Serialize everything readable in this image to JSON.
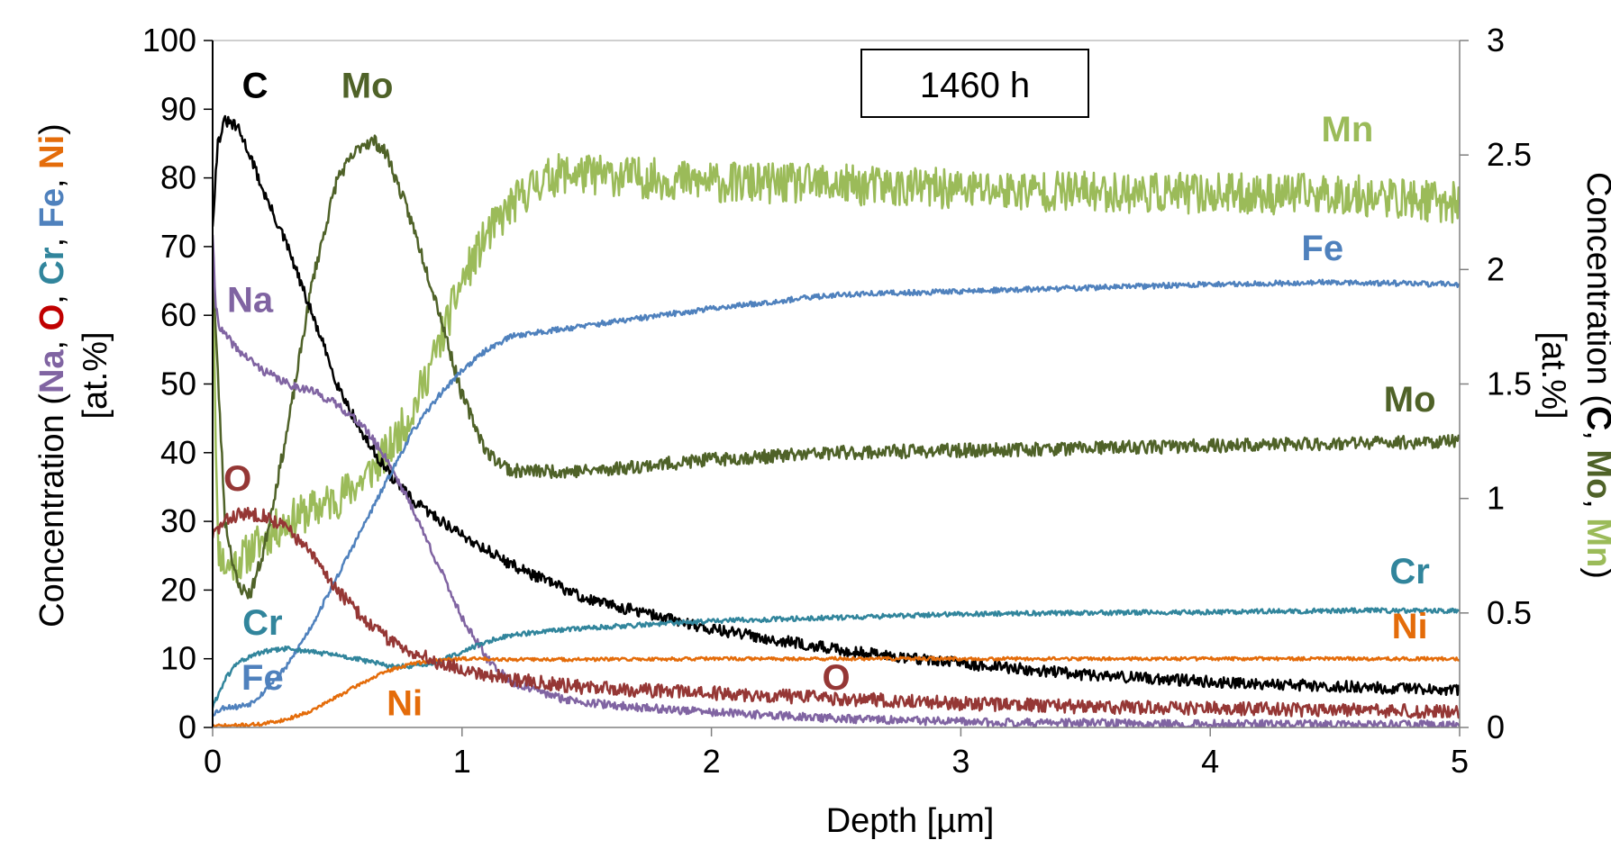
{
  "chart_data": {
    "type": "line",
    "annotation": "1460 h",
    "xlabel": "Depth [µm]",
    "xlim": [
      0,
      5
    ],
    "x_ticks": [
      "0",
      "1",
      "2",
      "3",
      "4",
      "5"
    ],
    "y_left": {
      "label_prefix": "Concentration",
      "label_elements": [
        {
          "text": "(",
          "color": "#000000"
        },
        {
          "text": "Na",
          "color": "#8064A2"
        },
        {
          "text": ", ",
          "color": "#000000"
        },
        {
          "text": "O",
          "color": "#C00000"
        },
        {
          "text": ", ",
          "color": "#000000"
        },
        {
          "text": "Cr",
          "color": "#31859C"
        },
        {
          "text": ", ",
          "color": "#000000"
        },
        {
          "text": "Fe",
          "color": "#4F81BD"
        },
        {
          "text": ", ",
          "color": "#000000"
        },
        {
          "text": "Ni",
          "color": "#E46C0A"
        },
        {
          "text": ")",
          "color": "#000000"
        }
      ],
      "unit": "[at.%]",
      "lim": [
        0,
        100
      ],
      "ticks": [
        "0",
        "10",
        "20",
        "30",
        "40",
        "50",
        "60",
        "70",
        "80",
        "90",
        "100"
      ]
    },
    "y_right": {
      "label_prefix": "Concentration",
      "label_elements": [
        {
          "text": "(",
          "color": "#000000"
        },
        {
          "text": "C",
          "color": "#000000"
        },
        {
          "text": ", ",
          "color": "#000000"
        },
        {
          "text": "Mo",
          "color": "#4F6228"
        },
        {
          "text": ", ",
          "color": "#000000"
        },
        {
          "text": "Mn",
          "color": "#9BBB59"
        },
        {
          "text": ")",
          "color": "#000000"
        }
      ],
      "unit": "[at.%]",
      "lim": [
        0,
        3
      ],
      "ticks": [
        "0",
        "0.5",
        "1",
        "1.5",
        "2",
        "2.5",
        "3"
      ]
    },
    "series": [
      {
        "name": "Mn",
        "axis": "right",
        "color": "#9BBB59",
        "noise": 0.09,
        "seed": 11,
        "x": [
          0,
          0.02,
          0.05,
          0.1,
          0.2,
          0.3,
          0.4,
          0.5,
          0.6,
          0.7,
          0.8,
          0.9,
          1.0,
          1.1,
          1.2,
          1.3,
          1.4,
          1.6,
          2.0,
          2.5,
          3.0,
          3.5,
          4.0,
          4.5,
          5.0
        ],
        "y": [
          2.1,
          0.8,
          0.7,
          0.72,
          0.82,
          0.9,
          0.95,
          1.0,
          1.08,
          1.2,
          1.38,
          1.65,
          1.95,
          2.15,
          2.28,
          2.38,
          2.42,
          2.41,
          2.38,
          2.37,
          2.35,
          2.34,
          2.33,
          2.33,
          2.29
        ]
      },
      {
        "name": "Mo",
        "axis": "right",
        "color": "#4F6228",
        "noise": 0.03,
        "seed": 23,
        "x": [
          0,
          0.05,
          0.1,
          0.15,
          0.2,
          0.3,
          0.4,
          0.5,
          0.6,
          0.65,
          0.7,
          0.8,
          0.9,
          1.0,
          1.1,
          1.2,
          1.5,
          2.0,
          2.5,
          3.0,
          3.5,
          4.0,
          4.5,
          5.0
        ],
        "y": [
          2.0,
          0.9,
          0.62,
          0.58,
          0.75,
          1.3,
          1.95,
          2.4,
          2.55,
          2.56,
          2.5,
          2.2,
          1.85,
          1.45,
          1.2,
          1.12,
          1.12,
          1.17,
          1.2,
          1.21,
          1.22,
          1.23,
          1.24,
          1.25
        ]
      },
      {
        "name": "C",
        "axis": "right",
        "color": "#000000",
        "noise": 0.025,
        "seed": 31,
        "x": [
          0,
          0.02,
          0.05,
          0.1,
          0.15,
          0.2,
          0.3,
          0.4,
          0.5,
          0.6,
          0.7,
          0.8,
          1.0,
          1.2,
          1.5,
          2.0,
          2.5,
          3.0,
          3.5,
          4.0,
          4.5,
          5.0
        ],
        "y": [
          2.2,
          2.55,
          2.65,
          2.62,
          2.5,
          2.35,
          2.1,
          1.8,
          1.5,
          1.28,
          1.12,
          0.99,
          0.84,
          0.71,
          0.56,
          0.43,
          0.34,
          0.28,
          0.23,
          0.2,
          0.18,
          0.16
        ]
      },
      {
        "name": "Na",
        "axis": "left",
        "color": "#8064A2",
        "noise": 0.6,
        "seed": 41,
        "x": [
          0,
          0.01,
          0.03,
          0.1,
          0.2,
          0.3,
          0.4,
          0.5,
          0.6,
          0.7,
          0.8,
          0.9,
          1.0,
          1.1,
          1.2,
          1.4,
          1.6,
          2.0,
          2.5,
          3.0,
          4.0,
          5.0
        ],
        "y": [
          72,
          62,
          58,
          55,
          52,
          50,
          49,
          47,
          44,
          39,
          32,
          24,
          16,
          10,
          6.5,
          4.2,
          3.2,
          2.2,
          1.3,
          0.8,
          0.5,
          0.4
        ]
      },
      {
        "name": "Fe",
        "axis": "left",
        "color": "#4F81BD",
        "noise": 0.4,
        "seed": 53,
        "x": [
          0,
          0.05,
          0.1,
          0.15,
          0.2,
          0.3,
          0.4,
          0.5,
          0.6,
          0.7,
          0.8,
          0.9,
          1.0,
          1.1,
          1.2,
          1.4,
          1.6,
          2.0,
          2.5,
          3.0,
          3.5,
          4.0,
          4.5,
          5.0
        ],
        "y": [
          2,
          3,
          3,
          3.5,
          5,
          9,
          15,
          22,
          29,
          36,
          43,
          48,
          52,
          55,
          57,
          58,
          59,
          61,
          63,
          63.5,
          64,
          64.5,
          64.8,
          64.5
        ]
      },
      {
        "name": "Cr",
        "axis": "left",
        "color": "#31859C",
        "noise": 0.35,
        "seed": 61,
        "x": [
          0,
          0.05,
          0.1,
          0.2,
          0.3,
          0.4,
          0.5,
          0.6,
          0.7,
          0.8,
          0.9,
          1.0,
          1.1,
          1.2,
          1.5,
          2.0,
          2.5,
          3.0,
          3.5,
          4.0,
          4.5,
          5.0
        ],
        "y": [
          3,
          7,
          9.5,
          11,
          11.5,
          11,
          10.5,
          9.8,
          9,
          8.8,
          9.5,
          11,
          12.5,
          13.5,
          14.5,
          15.5,
          16,
          16.5,
          16.7,
          16.8,
          17,
          17
        ]
      },
      {
        "name": "Ni",
        "axis": "left",
        "color": "#E46C0A",
        "noise": 0.25,
        "seed": 71,
        "x": [
          0,
          0.1,
          0.2,
          0.3,
          0.4,
          0.5,
          0.6,
          0.7,
          0.8,
          0.9,
          1.0,
          1.1,
          1.2,
          1.5,
          2.0,
          2.5,
          3.0,
          3.5,
          4.0,
          4.5,
          5.0
        ],
        "y": [
          0.2,
          0.3,
          0.5,
          1.2,
          2.5,
          4.5,
          6.5,
          8.2,
          9.3,
          9.8,
          10,
          10,
          9.9,
          9.9,
          10,
          10,
          10,
          10,
          10,
          10,
          10
        ]
      },
      {
        "name": "O",
        "axis": "left",
        "color": "#953735",
        "noise": 1.0,
        "seed": 83,
        "x": [
          0,
          0.05,
          0.1,
          0.2,
          0.3,
          0.4,
          0.5,
          0.6,
          0.7,
          0.8,
          0.9,
          1.0,
          1.2,
          1.5,
          2.0,
          2.5,
          3.0,
          3.5,
          4.0,
          4.5,
          5.0
        ],
        "y": [
          28,
          30,
          31,
          31,
          29,
          25,
          20,
          16,
          13,
          11,
          9.5,
          8.5,
          7,
          5.8,
          5,
          4.2,
          3.5,
          3,
          2.8,
          2.5,
          2.3
        ]
      }
    ],
    "series_labels": [
      {
        "text": "C",
        "color": "#000000",
        "axis": "right",
        "x": 0.17,
        "y": 2.75
      },
      {
        "text": "Mo",
        "color": "#4F6228",
        "axis": "right",
        "x": 0.62,
        "y": 2.75
      },
      {
        "text": "Mn",
        "color": "#9BBB59",
        "axis": "right",
        "x": 4.55,
        "y": 2.56
      },
      {
        "text": "Fe",
        "color": "#4F81BD",
        "axis": "left",
        "x": 4.45,
        "y": 68
      },
      {
        "text": "Mo",
        "color": "#4F6228",
        "axis": "right",
        "x": 4.8,
        "y": 1.38
      },
      {
        "text": "Na",
        "color": "#8064A2",
        "axis": "left",
        "x": 0.15,
        "y": 60.5
      },
      {
        "text": "O",
        "color": "#953735",
        "axis": "left",
        "x": 0.1,
        "y": 34.5
      },
      {
        "text": "Cr",
        "color": "#31859C",
        "axis": "left",
        "x": 0.2,
        "y": 13.5
      },
      {
        "text": "Fe",
        "color": "#4F81BD",
        "axis": "left",
        "x": 0.2,
        "y": 5.5
      },
      {
        "text": "Ni",
        "color": "#E46C0A",
        "axis": "left",
        "x": 0.77,
        "y": 1.8
      },
      {
        "text": "O",
        "color": "#953735",
        "axis": "left",
        "x": 2.5,
        "y": 5.5
      },
      {
        "text": "Cr",
        "color": "#31859C",
        "axis": "left",
        "x": 4.8,
        "y": 21
      },
      {
        "text": "Ni",
        "color": "#E46C0A",
        "axis": "left",
        "x": 4.8,
        "y": 13
      }
    ]
  }
}
